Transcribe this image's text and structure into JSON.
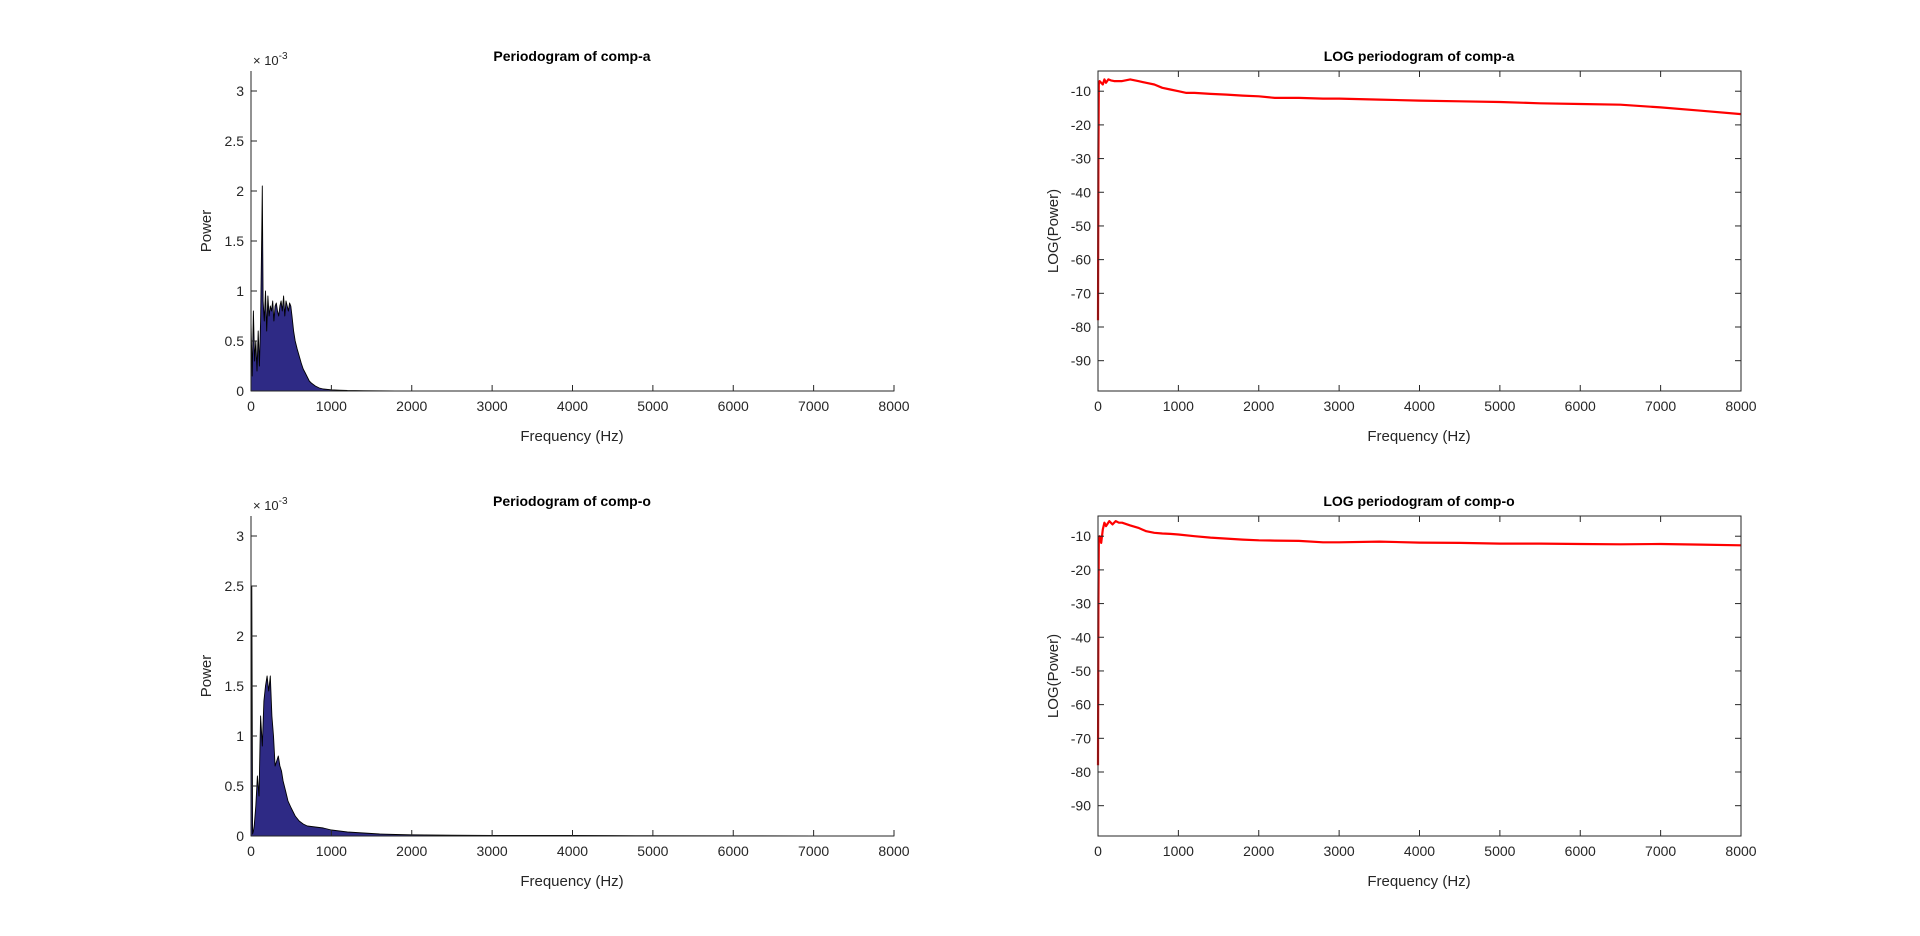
{
  "colors": {
    "area_fill": "#2e2a85",
    "area_edge": "#000000",
    "log_line": "#ff0000",
    "axis": "#262626",
    "background": "#ffffff"
  },
  "chart_data": [
    {
      "id": "p1",
      "type": "area",
      "title": "Periodogram of comp-a",
      "xlabel": "Frequency (Hz)",
      "ylabel": "Power",
      "xlim": [
        0,
        8000
      ],
      "ylim": [
        0,
        3.2
      ],
      "y_exponent_label": "× 10",
      "y_exponent_power": "-3",
      "xticks": [
        0,
        1000,
        2000,
        3000,
        4000,
        5000,
        6000,
        7000,
        8000
      ],
      "yticks": [
        0,
        0.5,
        1,
        1.5,
        2,
        2.5,
        3
      ],
      "xtick_labels": [
        "0",
        "1000",
        "2000",
        "3000",
        "4000",
        "5000",
        "6000",
        "7000",
        "8000"
      ],
      "ytick_labels": [
        "0",
        "0.5",
        "1",
        "1.5",
        "2",
        "2.5",
        "3"
      ],
      "grid": false,
      "series": [
        {
          "x": [
            0,
            15,
            30,
            45,
            60,
            75,
            90,
            105,
            120,
            135,
            140,
            150,
            165,
            180,
            195,
            210,
            225,
            240,
            255,
            270,
            285,
            300,
            315,
            330,
            345,
            360,
            375,
            390,
            405,
            420,
            435,
            450,
            465,
            480,
            495,
            510,
            530,
            550,
            575,
            600,
            625,
            650,
            675,
            700,
            725,
            750,
            800,
            850,
            900,
            1000,
            1100,
            1200,
            1400,
            1600,
            1800,
            2000,
            2500,
            3000,
            4000,
            5000,
            6000,
            7000,
            8000
          ],
          "values": [
            0.7,
            0.15,
            0.8,
            0.3,
            0.5,
            0.2,
            0.6,
            0.25,
            0.7,
            1.7,
            2.05,
            0.9,
            0.7,
            1.0,
            0.6,
            0.95,
            0.75,
            0.85,
            0.8,
            0.9,
            0.7,
            0.85,
            0.88,
            0.8,
            0.75,
            0.85,
            0.9,
            0.8,
            0.95,
            0.75,
            0.9,
            0.85,
            0.8,
            0.88,
            0.85,
            0.75,
            0.6,
            0.5,
            0.42,
            0.35,
            0.28,
            0.22,
            0.18,
            0.14,
            0.1,
            0.08,
            0.05,
            0.03,
            0.02,
            0.012,
            0.008,
            0.005,
            0.003,
            0.002,
            0.0015,
            0.001,
            0.0005,
            0.0003,
            0.0002,
            0.0001,
            0.0001,
            0.0001,
            0.0
          ]
        }
      ]
    },
    {
      "id": "p2",
      "type": "line",
      "title": "LOG periodogram of comp-a",
      "xlabel": "Frequency (Hz)",
      "ylabel": "LOG(Power)",
      "xlim": [
        0,
        8000
      ],
      "ylim": [
        -99,
        -4
      ],
      "xticks": [
        0,
        1000,
        2000,
        3000,
        4000,
        5000,
        6000,
        7000,
        8000
      ],
      "yticks": [
        -90,
        -80,
        -70,
        -60,
        -50,
        -40,
        -30,
        -20,
        -10
      ],
      "xtick_labels": [
        "0",
        "1000",
        "2000",
        "3000",
        "4000",
        "5000",
        "6000",
        "7000",
        "8000"
      ],
      "ytick_labels": [
        "-90",
        "-80",
        "-70",
        "-60",
        "-50",
        "-40",
        "-30",
        "-20",
        "-10"
      ],
      "grid": false,
      "series": [
        {
          "x": [
            0,
            5,
            10,
            20,
            40,
            60,
            80,
            100,
            130,
            160,
            200,
            300,
            400,
            500,
            600,
            700,
            800,
            900,
            1000,
            1100,
            1200,
            1400,
            1600,
            1800,
            2000,
            2200,
            2500,
            2800,
            3000,
            3500,
            4000,
            4500,
            5000,
            5500,
            6000,
            6500,
            7000,
            7500,
            8000
          ],
          "values": [
            -78,
            -30,
            -8,
            -7,
            -7.5,
            -8,
            -6.5,
            -7.5,
            -6.5,
            -6.8,
            -7,
            -7,
            -6.5,
            -7,
            -7.5,
            -8,
            -9,
            -9.5,
            -10,
            -10.5,
            -10.5,
            -10.8,
            -11,
            -11.3,
            -11.5,
            -12,
            -12,
            -12.2,
            -12.2,
            -12.5,
            -12.8,
            -13,
            -13.2,
            -13.6,
            -13.8,
            -14,
            -14.8,
            -15.8,
            -16.8
          ]
        }
      ]
    },
    {
      "id": "p3",
      "type": "area",
      "title": "Periodogram of comp-o",
      "xlabel": "Frequency (Hz)",
      "ylabel": "Power",
      "xlim": [
        0,
        8000
      ],
      "ylim": [
        0,
        3.2
      ],
      "y_exponent_label": "× 10",
      "y_exponent_power": "-3",
      "xticks": [
        0,
        1000,
        2000,
        3000,
        4000,
        5000,
        6000,
        7000,
        8000
      ],
      "yticks": [
        0,
        0.5,
        1,
        1.5,
        2,
        2.5,
        3
      ],
      "xtick_labels": [
        "0",
        "1000",
        "2000",
        "3000",
        "4000",
        "5000",
        "6000",
        "7000",
        "8000"
      ],
      "ytick_labels": [
        "0",
        "0.5",
        "1",
        "1.5",
        "2",
        "2.5",
        "3"
      ],
      "grid": false,
      "series": [
        {
          "x": [
            0,
            10,
            20,
            30,
            40,
            60,
            80,
            100,
            120,
            140,
            160,
            180,
            200,
            220,
            240,
            260,
            280,
            300,
            320,
            340,
            360,
            380,
            400,
            430,
            460,
            500,
            550,
            600,
            650,
            700,
            800,
            900,
            1000,
            1200,
            1400,
            1600,
            1800,
            2000,
            2500,
            3000,
            3500,
            4000,
            4500,
            5000,
            6000,
            7000,
            8000
          ],
          "values": [
            0.0,
            2.5,
            0.02,
            0.05,
            0.1,
            0.3,
            0.6,
            0.4,
            1.2,
            0.9,
            1.35,
            1.5,
            1.6,
            1.45,
            1.6,
            1.2,
            1.0,
            0.7,
            0.75,
            0.8,
            0.7,
            0.65,
            0.55,
            0.45,
            0.35,
            0.28,
            0.2,
            0.15,
            0.12,
            0.1,
            0.09,
            0.08,
            0.06,
            0.04,
            0.03,
            0.02,
            0.015,
            0.012,
            0.008,
            0.006,
            0.005,
            0.006,
            0.004,
            0.003,
            0.002,
            0.001,
            0.0
          ]
        }
      ]
    },
    {
      "id": "p4",
      "type": "line",
      "title": "LOG periodogram of comp-o",
      "xlabel": "Frequency (Hz)",
      "ylabel": "LOG(Power)",
      "xlim": [
        0,
        8000
      ],
      "ylim": [
        -99,
        -4
      ],
      "xticks": [
        0,
        1000,
        2000,
        3000,
        4000,
        5000,
        6000,
        7000,
        8000
      ],
      "yticks": [
        -90,
        -80,
        -70,
        -60,
        -50,
        -40,
        -30,
        -20,
        -10
      ],
      "xtick_labels": [
        "0",
        "1000",
        "2000",
        "3000",
        "4000",
        "5000",
        "6000",
        "7000",
        "8000"
      ],
      "ytick_labels": [
        "-90",
        "-80",
        "-70",
        "-60",
        "-50",
        "-40",
        "-30",
        "-20",
        "-10"
      ],
      "grid": false,
      "series": [
        {
          "x": [
            0,
            5,
            10,
            20,
            40,
            60,
            80,
            100,
            140,
            180,
            220,
            260,
            300,
            400,
            500,
            600,
            700,
            800,
            900,
            1000,
            1200,
            1400,
            1600,
            1800,
            2000,
            2200,
            2500,
            2800,
            3000,
            3500,
            4000,
            4500,
            5000,
            5500,
            6000,
            6500,
            7000,
            7500,
            8000
          ],
          "values": [
            -78,
            -30,
            -12,
            -10,
            -12,
            -8,
            -6,
            -7,
            -5.5,
            -6.5,
            -5.5,
            -6,
            -6,
            -6.8,
            -7.5,
            -8.5,
            -9,
            -9.2,
            -9.3,
            -9.5,
            -10,
            -10.4,
            -10.7,
            -11,
            -11.2,
            -11.3,
            -11.4,
            -11.8,
            -11.8,
            -11.6,
            -11.9,
            -12,
            -12.2,
            -12.2,
            -12.3,
            -12.4,
            -12.3,
            -12.5,
            -12.7
          ]
        }
      ]
    }
  ]
}
